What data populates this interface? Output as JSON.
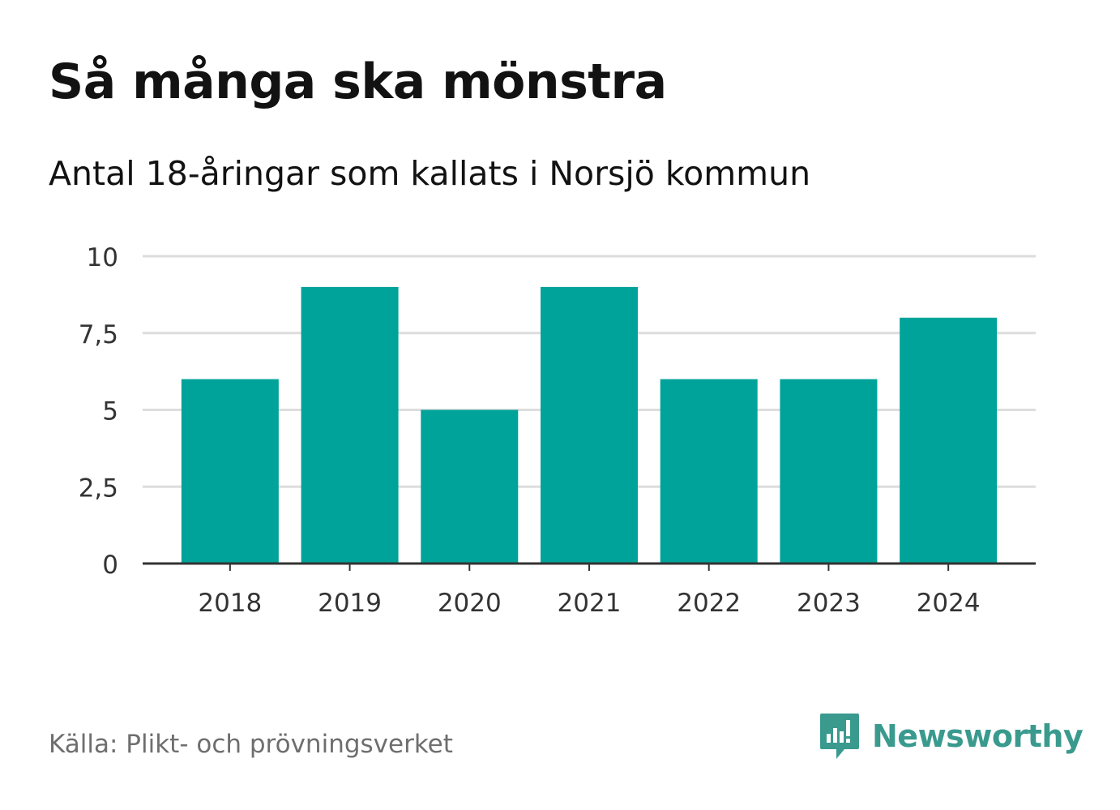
{
  "header": {
    "title": "Så många ska mönstra",
    "subtitle": "Antal 18-åringar som kallats i Norsjö kommun"
  },
  "footer": {
    "source": "Källa: Plikt- och prövningsverket",
    "brand": "Newsworthy",
    "brand_icon": "newsworthy-logo-icon"
  },
  "colors": {
    "bar": "#00a39a",
    "grid": "#dddddd",
    "axis": "#333333",
    "brand": "#3a9a8e"
  },
  "chart_data": {
    "type": "bar",
    "title": "Så många ska mönstra",
    "subtitle": "Antal 18-åringar som kallats i Norsjö kommun",
    "categories": [
      "2018",
      "2019",
      "2020",
      "2021",
      "2022",
      "2023",
      "2024"
    ],
    "values": [
      6,
      9,
      5,
      9,
      6,
      6,
      8
    ],
    "ylim": [
      0,
      10
    ],
    "yticks": [
      0,
      2.5,
      5,
      7.5,
      10
    ],
    "ytick_labels": [
      "0",
      "2,5",
      "5",
      "7,5",
      "10"
    ],
    "xlabel": "",
    "ylabel": "",
    "grid": true,
    "legend": "none"
  }
}
